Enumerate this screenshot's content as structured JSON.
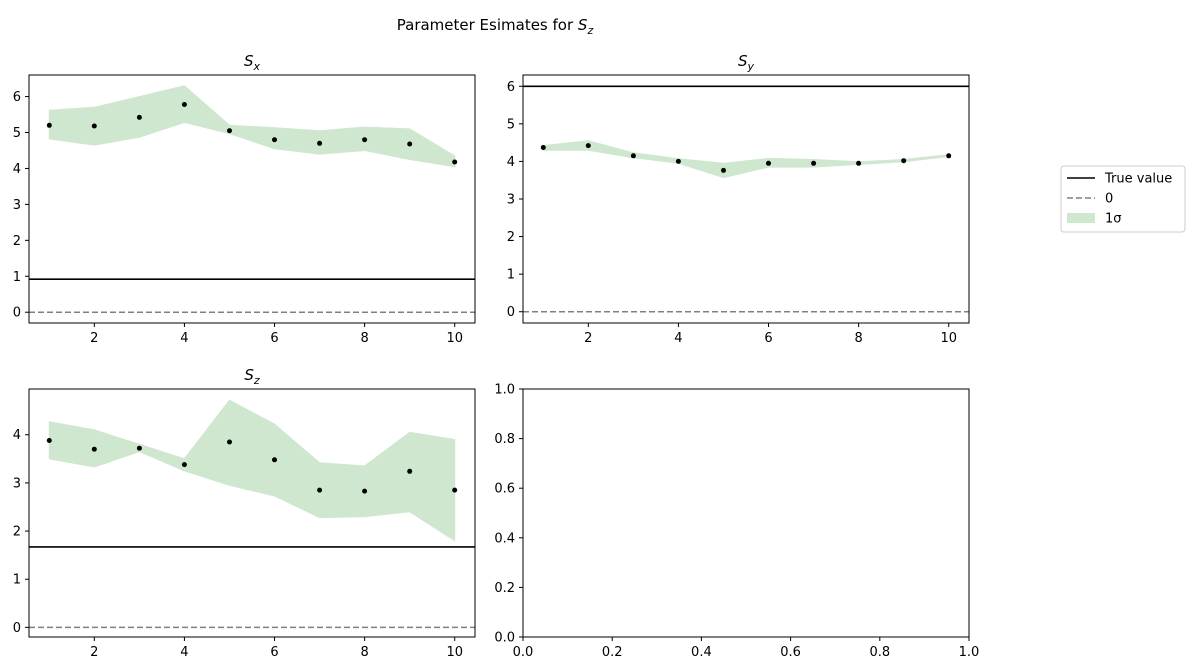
{
  "figure": {
    "suptitle_text": "Parameter Esimates for ",
    "suptitle_symbol": "S",
    "suptitle_sub": "z"
  },
  "legend": {
    "placement": "right",
    "entries": [
      {
        "label": "True value",
        "style": "solid",
        "color": "#000000"
      },
      {
        "label": "0",
        "style": "dashed",
        "color": "#808080"
      },
      {
        "label": "1σ",
        "style": "fill",
        "color": "#cfe6cf"
      }
    ]
  },
  "chart_data": [
    {
      "type": "line",
      "title_symbol": "S",
      "title_sub": "x",
      "x": [
        1,
        2,
        3,
        4,
        5,
        6,
        7,
        8,
        9,
        10
      ],
      "estimate": [
        5.2,
        5.18,
        5.42,
        5.78,
        5.05,
        4.8,
        4.7,
        4.8,
        4.68,
        4.18
      ],
      "band_lower": [
        4.82,
        4.65,
        4.87,
        5.28,
        4.97,
        4.55,
        4.4,
        4.5,
        4.25,
        4.05
      ],
      "band_upper": [
        5.62,
        5.7,
        6.0,
        6.3,
        5.2,
        5.13,
        5.05,
        5.15,
        5.1,
        4.35
      ],
      "true_value": 0.92,
      "zero_line": 0,
      "xlim": [
        0.55,
        10.45
      ],
      "ylim": [
        -0.3,
        6.6
      ],
      "xticks": [
        2,
        4,
        6,
        8,
        10
      ],
      "yticks": [
        0,
        1,
        2,
        3,
        4,
        5,
        6
      ]
    },
    {
      "type": "line",
      "title_symbol": "S",
      "title_sub": "y",
      "x": [
        1,
        2,
        3,
        4,
        5,
        6,
        7,
        8,
        9,
        10
      ],
      "estimate": [
        4.37,
        4.42,
        4.15,
        4.0,
        3.76,
        3.95,
        3.95,
        3.95,
        4.02,
        4.15
      ],
      "band_lower": [
        4.3,
        4.3,
        4.1,
        3.95,
        3.57,
        3.85,
        3.85,
        3.92,
        3.99,
        4.13
      ],
      "band_upper": [
        4.42,
        4.55,
        4.23,
        4.07,
        3.95,
        4.08,
        4.05,
        3.99,
        4.05,
        4.18
      ],
      "true_value": 6.0,
      "zero_line": 0,
      "xlim": [
        0.55,
        10.45
      ],
      "ylim": [
        -0.3,
        6.3
      ],
      "xticks": [
        2,
        4,
        6,
        8,
        10
      ],
      "yticks": [
        0,
        1,
        2,
        3,
        4,
        5,
        6
      ]
    },
    {
      "type": "line",
      "title_symbol": "S",
      "title_sub": "z",
      "x": [
        1,
        2,
        3,
        4,
        5,
        6,
        7,
        8,
        9,
        10
      ],
      "estimate": [
        3.88,
        3.7,
        3.72,
        3.38,
        3.85,
        3.48,
        2.85,
        2.83,
        3.24,
        2.85
      ],
      "band_lower": [
        3.5,
        3.33,
        3.65,
        3.25,
        2.95,
        2.73,
        2.28,
        2.3,
        2.4,
        1.8
      ],
      "band_upper": [
        4.27,
        4.1,
        3.8,
        3.5,
        4.72,
        4.22,
        3.42,
        3.35,
        4.05,
        3.9
      ],
      "true_value": 1.67,
      "zero_line": 0,
      "xlim": [
        0.55,
        10.45
      ],
      "ylim": [
        -0.2,
        4.95
      ],
      "xticks": [
        2,
        4,
        6,
        8,
        10
      ],
      "yticks": [
        0,
        1,
        2,
        3,
        4
      ]
    },
    {
      "type": "line",
      "empty": true,
      "xlim": [
        0,
        1
      ],
      "ylim": [
        0,
        1
      ],
      "xticks": [
        0.0,
        0.2,
        0.4,
        0.6,
        0.8,
        1.0
      ],
      "yticks": [
        0.0,
        0.2,
        0.4,
        0.6,
        0.8,
        1.0
      ],
      "tick_format": "0.0"
    }
  ]
}
